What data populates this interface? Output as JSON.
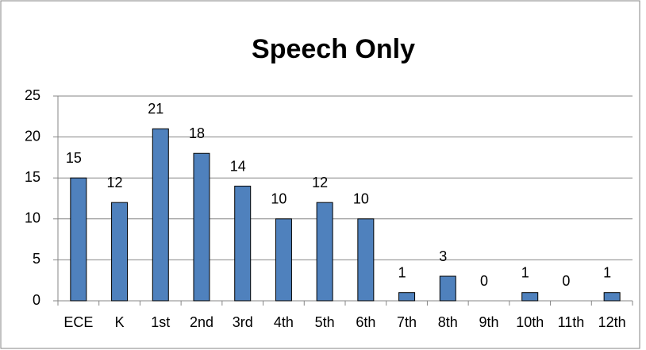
{
  "chart_data": {
    "type": "bar",
    "title": "Speech Only",
    "categories": [
      "ECE",
      "K",
      "1st",
      "2nd",
      "3rd",
      "4th",
      "5th",
      "6th",
      "7th",
      "8th",
      "9th",
      "10th",
      "11th",
      "12th"
    ],
    "values": [
      15,
      12,
      21,
      18,
      14,
      10,
      12,
      10,
      1,
      3,
      0,
      1,
      0,
      1
    ],
    "color": "#4f81bd",
    "ylim": [
      0,
      25
    ],
    "yticks": [
      0,
      5,
      10,
      15,
      20,
      25
    ],
    "grid": true
  }
}
